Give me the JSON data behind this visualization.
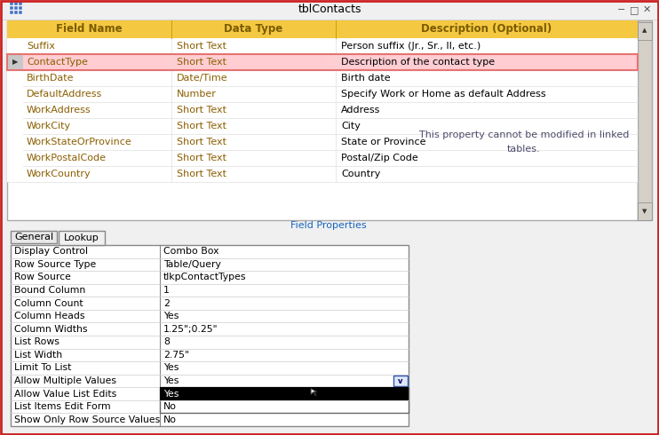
{
  "title": "tblContacts",
  "window_bg": "#f0f0f0",
  "title_bar_bg": "#f0f0f0",
  "title_bar_fg": "#000000",
  "header_bg": "#f5c842",
  "header_fg": "#7a5c00",
  "grid_fields": [
    [
      "Suffix",
      "Short Text",
      "Person suffix (Jr., Sr., II, etc.)"
    ],
    [
      "ContactType",
      "Short Text",
      "Description of the contact type"
    ],
    [
      "BirthDate",
      "Date/Time",
      "Birth date"
    ],
    [
      "DefaultAddress",
      "Number",
      "Specify Work or Home as default Address"
    ],
    [
      "WorkAddress",
      "Short Text",
      "Address"
    ],
    [
      "WorkCity",
      "Short Text",
      "City"
    ],
    [
      "WorkStateOrProvince",
      "Short Text",
      "State or Province"
    ],
    [
      "WorkPostalCode",
      "Short Text",
      "Postal/Zip Code"
    ],
    [
      "WorkCountry",
      "Short Text",
      "Country"
    ]
  ],
  "selected_row": 1,
  "field_text_color": "#8B5E00",
  "selected_row_highlight": "#ffcdd2",
  "selected_row_border": "#e57373",
  "field_properties_label": "Field Properties",
  "field_props_color": "#1565C0",
  "lookup_props": [
    [
      "Display Control",
      "Combo Box"
    ],
    [
      "Row Source Type",
      "Table/Query"
    ],
    [
      "Row Source",
      "tlkpContactTypes"
    ],
    [
      "Bound Column",
      "1"
    ],
    [
      "Column Count",
      "2"
    ],
    [
      "Column Heads",
      "Yes"
    ],
    [
      "Column Widths",
      "1.25\";0.25\""
    ],
    [
      "List Rows",
      "8"
    ],
    [
      "List Width",
      "2.75\""
    ],
    [
      "Limit To List",
      "Yes"
    ],
    [
      "Allow Multiple Values",
      "Yes"
    ],
    [
      "Allow Value List Edits",
      "Yes"
    ],
    [
      "List Items Edit Form",
      "No"
    ],
    [
      "Show Only Row Source Values",
      "No"
    ]
  ],
  "dropdown_row": 10,
  "side_text_line1": "This property cannot be modified in linked",
  "side_text_line2": "tables.",
  "side_text_color": "#4a4a6a",
  "tab_general": "General",
  "tab_lookup": "Lookup",
  "outer_border_color": "#cc2222"
}
